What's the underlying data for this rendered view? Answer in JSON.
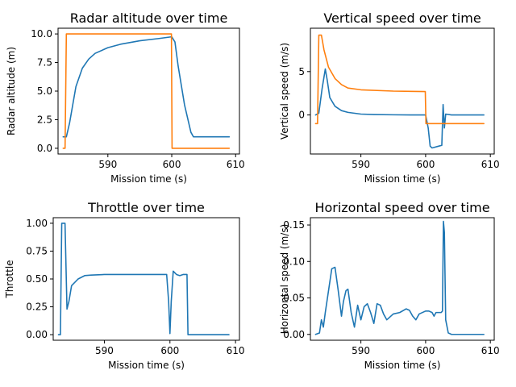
{
  "colors": {
    "blue": "#1f77b4",
    "orange": "#ff7f0e"
  },
  "chart_data": [
    {
      "type": "line",
      "title": "Radar altitude over time",
      "xlabel": "Mission time (s)",
      "ylabel": "Radar altitude (m)",
      "xlim": [
        582.2,
        610.6
      ],
      "ylim": [
        -0.5,
        10.5
      ],
      "xticks": [
        590,
        600,
        610
      ],
      "xtick_labels": [
        "590",
        "600",
        "610"
      ],
      "yticks": [
        0,
        2.5,
        5,
        7.5,
        10
      ],
      "ytick_labels": [
        "0.0",
        "2.5",
        "5.0",
        "7.5",
        "10.0"
      ],
      "grid": false,
      "series": [
        {
          "color": "#1f77b4",
          "x": [
            583,
            583.5,
            584,
            584.5,
            585,
            586,
            587,
            588,
            590,
            592,
            595,
            598,
            600,
            600.5,
            601,
            602,
            603,
            603.4,
            604,
            609
          ],
          "y": [
            1.0,
            1.0,
            2.2,
            3.8,
            5.4,
            7.0,
            7.8,
            8.3,
            8.8,
            9.1,
            9.4,
            9.6,
            9.75,
            9.3,
            7.2,
            3.8,
            1.4,
            1.0,
            1.0,
            1.0
          ]
        },
        {
          "color": "#ff7f0e",
          "x": [
            583,
            583.3,
            583.5,
            590,
            599.95,
            600.05,
            605,
            609
          ],
          "y": [
            0,
            0,
            10,
            10,
            10,
            0,
            0,
            0
          ]
        }
      ]
    },
    {
      "type": "line",
      "title": "Vertical speed over time",
      "xlabel": "Mission time (s)",
      "ylabel": "Vertical speed (m/s)",
      "xlim": [
        582.2,
        610.6
      ],
      "ylim": [
        -4.5,
        10
      ],
      "xticks": [
        590,
        600,
        610
      ],
      "xtick_labels": [
        "590",
        "600",
        "610"
      ],
      "yticks": [
        0,
        5
      ],
      "ytick_labels": [
        "0",
        "5"
      ],
      "grid": false,
      "series": [
        {
          "color": "#1f77b4",
          "x": [
            583,
            583.5,
            584,
            584.5,
            584.8,
            585.2,
            586,
            587,
            588,
            590,
            592,
            595,
            598,
            600,
            600.4,
            600.7,
            601,
            602,
            602.5,
            602.7,
            602.9,
            603.1,
            604,
            609
          ],
          "y": [
            0,
            0.2,
            3.0,
            5.3,
            4.0,
            2.0,
            1.0,
            0.5,
            0.3,
            0.1,
            0.05,
            0.02,
            0,
            0,
            -1.5,
            -3.6,
            -3.8,
            -3.6,
            -3.5,
            1.2,
            -1.5,
            0.1,
            0,
            0
          ]
        },
        {
          "color": "#ff7f0e",
          "x": [
            583,
            583.3,
            583.5,
            583.9,
            584.3,
            585,
            586,
            587,
            588,
            590,
            595,
            599.95,
            600.05,
            605,
            609
          ],
          "y": [
            -1,
            -1,
            9.2,
            9.2,
            7.5,
            5.5,
            4.2,
            3.5,
            3.1,
            2.9,
            2.75,
            2.7,
            -1,
            -1,
            -1
          ]
        }
      ]
    },
    {
      "type": "line",
      "title": "Throttle over time",
      "xlabel": "Mission time (s)",
      "ylabel": "Throttle",
      "xlim": [
        582.2,
        610.6
      ],
      "ylim": [
        -0.05,
        1.05
      ],
      "xticks": [
        590,
        600,
        610
      ],
      "xtick_labels": [
        "590",
        "600",
        "610"
      ],
      "yticks": [
        0,
        0.25,
        0.5,
        0.75,
        1.0
      ],
      "ytick_labels": [
        "0.00",
        "0.25",
        "0.50",
        "0.75",
        "1.00"
      ],
      "grid": false,
      "series": [
        {
          "color": "#1f77b4",
          "x": [
            583,
            583.3,
            583.5,
            584,
            584.3,
            584.6,
            585,
            586,
            587,
            588,
            590,
            595,
            599.5,
            599.8,
            600,
            600.2,
            600.5,
            601,
            601.5,
            602,
            602.6,
            602.75,
            603,
            609
          ],
          "y": [
            0,
            0,
            1.0,
            1.0,
            0.23,
            0.3,
            0.44,
            0.5,
            0.53,
            0.535,
            0.54,
            0.54,
            0.54,
            0.3,
            0.01,
            0.3,
            0.57,
            0.54,
            0.53,
            0.54,
            0.54,
            0,
            0,
            0
          ]
        }
      ]
    },
    {
      "type": "line",
      "title": "Horizontal speed over time",
      "xlabel": "Mission time (s)",
      "ylabel": "Horizontal speed (m/s)",
      "xlim": [
        582.2,
        610.6
      ],
      "ylim": [
        -0.008,
        0.16
      ],
      "xticks": [
        590,
        600,
        610
      ],
      "xtick_labels": [
        "590",
        "600",
        "610"
      ],
      "yticks": [
        0,
        0.05,
        0.1,
        0.15
      ],
      "ytick_labels": [
        "0.00",
        "0.05",
        "0.10",
        "0.15"
      ],
      "grid": false,
      "series": [
        {
          "color": "#1f77b4",
          "x": [
            583,
            583.6,
            583.9,
            584.2,
            584.5,
            585,
            585.5,
            586,
            586.5,
            587,
            587.3,
            587.7,
            588,
            588.5,
            589,
            589.5,
            590,
            590.5,
            591,
            591.5,
            592,
            592.5,
            593,
            593.5,
            594,
            595,
            596,
            597,
            597.5,
            598,
            598.5,
            599,
            600,
            600.5,
            601,
            601.3,
            601.6,
            602,
            602.4,
            602.6,
            602.75,
            602.9,
            603.1,
            603.5,
            604,
            609
          ],
          "y": [
            0,
            0.002,
            0.02,
            0.01,
            0.03,
            0.06,
            0.09,
            0.092,
            0.06,
            0.025,
            0.045,
            0.06,
            0.062,
            0.03,
            0.01,
            0.04,
            0.02,
            0.038,
            0.042,
            0.03,
            0.015,
            0.042,
            0.04,
            0.028,
            0.02,
            0.028,
            0.03,
            0.035,
            0.033,
            0.025,
            0.02,
            0.028,
            0.032,
            0.032,
            0.03,
            0.025,
            0.03,
            0.03,
            0.03,
            0.032,
            0.155,
            0.14,
            0.02,
            0.002,
            0,
            0
          ]
        }
      ]
    }
  ]
}
